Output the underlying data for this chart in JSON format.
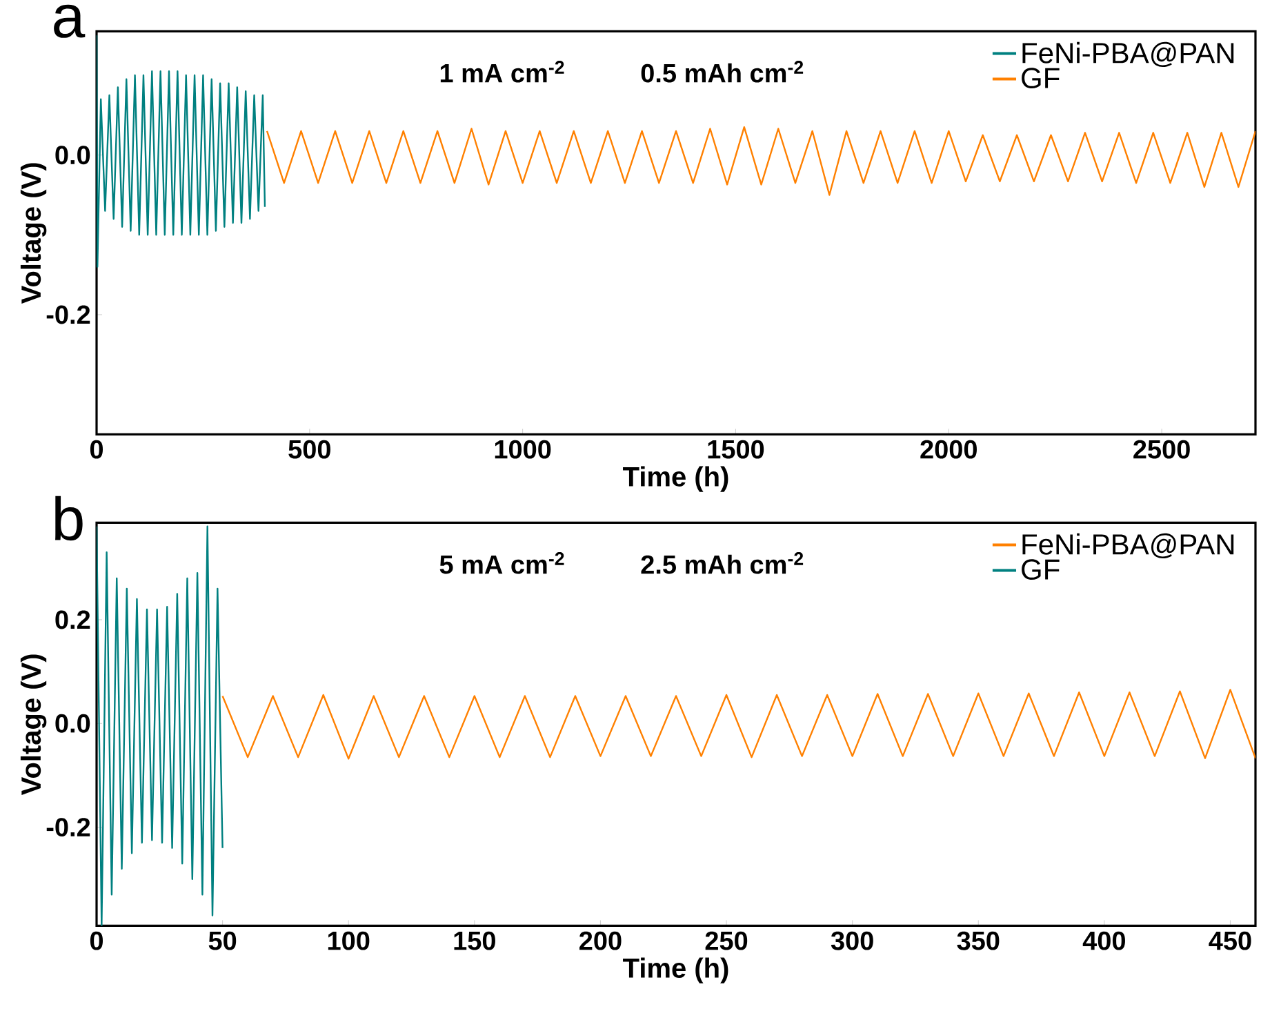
{
  "chart_data": [
    {
      "type": "line",
      "title": "a",
      "xlabel": "Time (h)",
      "ylabel": "Voltage (V)",
      "annotations": [
        "1 mA cm$^{-2}$",
        "0.5 mAh cm$^{-2}$"
      ],
      "legend": "top right",
      "line_style": "solid",
      "xlim": [
        0,
        2720
      ],
      "xticks": [
        0,
        500,
        1000,
        1500,
        2000,
        2500
      ],
      "ylim": [
        -0.35,
        0.155
      ],
      "yticks": [
        {
          "value": 0,
          "label": "0.0"
        },
        {
          "value": -0.2,
          "label": "-0.2"
        }
      ],
      "series": [
        {
          "name": "FeNi-PBA@PAN",
          "color": "#008080",
          "x": [
            0,
            2,
            10,
            20,
            30,
            40,
            50,
            60,
            70,
            80,
            90,
            100,
            110,
            120,
            130,
            140,
            150,
            160,
            170,
            180,
            190,
            200,
            210,
            220,
            230,
            240,
            250,
            260,
            270,
            280,
            290,
            300,
            310,
            320,
            330,
            340,
            350,
            360,
            370,
            380,
            390,
            395
          ],
          "values": [
            0.15,
            -0.14,
            0.07,
            -0.07,
            0.075,
            -0.08,
            0.085,
            -0.09,
            0.095,
            -0.095,
            0.1,
            -0.1,
            0.1,
            -0.1,
            0.105,
            -0.1,
            0.105,
            -0.1,
            0.105,
            -0.1,
            0.105,
            -0.1,
            0.1,
            -0.1,
            0.1,
            -0.1,
            0.1,
            -0.1,
            0.095,
            -0.095,
            0.09,
            -0.09,
            0.09,
            -0.085,
            0.085,
            -0.085,
            0.08,
            -0.08,
            0.075,
            -0.07,
            0.075,
            -0.065
          ]
        },
        {
          "name": "GF",
          "color": "#ff8000",
          "x": [
            400,
            440,
            480,
            520,
            560,
            600,
            640,
            680,
            720,
            760,
            800,
            840,
            880,
            920,
            960,
            1000,
            1040,
            1080,
            1120,
            1160,
            1200,
            1240,
            1280,
            1320,
            1360,
            1400,
            1440,
            1480,
            1520,
            1560,
            1600,
            1640,
            1680,
            1720,
            1760,
            1800,
            1840,
            1880,
            1920,
            1960,
            2000,
            2040,
            2080,
            2120,
            2160,
            2200,
            2240,
            2280,
            2320,
            2360,
            2400,
            2440,
            2480,
            2520,
            2560,
            2600,
            2640,
            2680,
            2720
          ],
          "values": [
            0.03,
            -0.035,
            0.03,
            -0.035,
            0.03,
            -0.035,
            0.03,
            -0.035,
            0.03,
            -0.035,
            0.03,
            -0.035,
            0.033,
            -0.037,
            0.03,
            -0.035,
            0.03,
            -0.035,
            0.03,
            -0.035,
            0.03,
            -0.035,
            0.03,
            -0.035,
            0.03,
            -0.035,
            0.033,
            -0.037,
            0.035,
            -0.037,
            0.033,
            -0.035,
            0.03,
            -0.05,
            0.03,
            -0.035,
            0.03,
            -0.035,
            0.03,
            -0.035,
            0.03,
            -0.033,
            0.025,
            -0.033,
            0.025,
            -0.033,
            0.025,
            -0.033,
            0.028,
            -0.033,
            0.028,
            -0.035,
            0.028,
            -0.035,
            0.028,
            -0.04,
            0.028,
            -0.04,
            0.03
          ]
        }
      ]
    },
    {
      "type": "line",
      "title": "b",
      "xlabel": "Time (h)",
      "ylabel": "Voltage (V)",
      "annotations": [
        "5 mA cm$^{-2}$",
        "2.5 mAh cm$^{-2}$"
      ],
      "legend": "top right",
      "line_style": "solid",
      "xlim": [
        0,
        460
      ],
      "xticks": [
        0,
        50,
        100,
        150,
        200,
        250,
        300,
        350,
        400,
        450
      ],
      "ylim": [
        -0.39,
        0.387
      ],
      "yticks": [
        {
          "value": 0.2,
          "label": "0.2"
        },
        {
          "value": 0,
          "label": "0.0"
        },
        {
          "value": -0.2,
          "label": "-0.2"
        }
      ],
      "series": [
        {
          "name": "FeNi-PBA@PAN",
          "color": "#ff8000",
          "x": [
            50,
            60,
            70,
            80,
            90,
            100,
            110,
            120,
            130,
            140,
            150,
            160,
            170,
            180,
            190,
            200,
            210,
            220,
            230,
            240,
            250,
            260,
            270,
            280,
            290,
            300,
            310,
            320,
            330,
            340,
            350,
            360,
            370,
            380,
            390,
            400,
            410,
            420,
            430,
            440,
            450,
            460
          ],
          "values": [
            0.053,
            -0.065,
            0.053,
            -0.065,
            0.055,
            -0.068,
            0.053,
            -0.065,
            0.053,
            -0.065,
            0.053,
            -0.065,
            0.053,
            -0.065,
            0.053,
            -0.063,
            0.053,
            -0.063,
            0.053,
            -0.063,
            0.055,
            -0.065,
            0.055,
            -0.063,
            0.055,
            -0.063,
            0.057,
            -0.063,
            0.057,
            -0.063,
            0.058,
            -0.063,
            0.058,
            -0.063,
            0.06,
            -0.063,
            0.06,
            -0.063,
            0.062,
            -0.067,
            0.065,
            -0.067
          ]
        },
        {
          "name": "GF",
          "color": "#008080",
          "x": [
            0,
            2,
            4,
            6,
            8,
            10,
            12,
            14,
            16,
            18,
            20,
            22,
            24,
            26,
            28,
            30,
            32,
            34,
            36,
            38,
            40,
            42,
            44,
            46,
            48,
            50
          ],
          "values": [
            0.38,
            -0.39,
            0.33,
            -0.33,
            0.28,
            -0.28,
            0.26,
            -0.25,
            0.24,
            -0.23,
            0.22,
            -0.225,
            0.22,
            -0.23,
            0.225,
            -0.24,
            0.25,
            -0.27,
            0.28,
            -0.3,
            0.29,
            -0.33,
            0.38,
            -0.37,
            0.26,
            -0.24
          ]
        }
      ]
    }
  ]
}
